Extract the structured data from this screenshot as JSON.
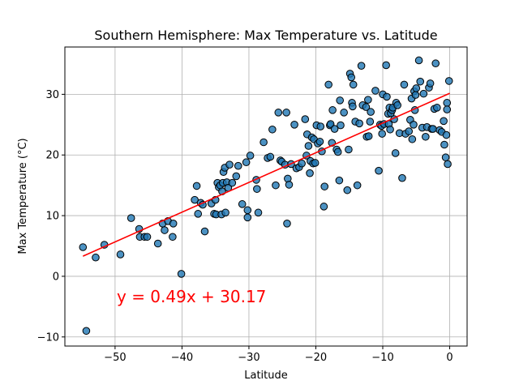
{
  "chart_data": {
    "type": "scatter",
    "title": "Southern Hemisphere: Max Temperature vs. Latitude",
    "xlabel": "Latitude",
    "ylabel": "Max Temperature (°C)",
    "xlim": [
      -57.5,
      2.6
    ],
    "ylim": [
      -11.5,
      37.8
    ],
    "xticks": [
      -50,
      -40,
      -30,
      -20,
      -10,
      0
    ],
    "yticks": [
      -10,
      0,
      10,
      20,
      30
    ],
    "grid": true,
    "marker_color": "#1f77b4",
    "marker_edge_color": "#000000",
    "regression": {
      "slope": 0.49,
      "intercept": 30.17,
      "x_range": [
        -54.8,
        0
      ],
      "color": "#ff0000",
      "equation_label": "y = 0.49x + 30.17"
    },
    "points": [
      [
        -54.8,
        4.8
      ],
      [
        -54.3,
        -9.0
      ],
      [
        -52.9,
        3.1
      ],
      [
        -51.6,
        5.2
      ],
      [
        -49.2,
        3.6
      ],
      [
        -47.6,
        9.6
      ],
      [
        -46.4,
        7.8
      ],
      [
        -46.3,
        6.5
      ],
      [
        -45.6,
        6.5
      ],
      [
        -45.2,
        6.5
      ],
      [
        -43.6,
        5.4
      ],
      [
        -42.9,
        8.7
      ],
      [
        -42.6,
        7.6
      ],
      [
        -42.1,
        9.1
      ],
      [
        -41.4,
        6.5
      ],
      [
        -41.3,
        8.7
      ],
      [
        -40.1,
        0.4
      ],
      [
        -38.1,
        12.6
      ],
      [
        -37.8,
        14.9
      ],
      [
        -37.6,
        10.3
      ],
      [
        -37.2,
        12.1
      ],
      [
        -36.9,
        11.8
      ],
      [
        -36.6,
        7.4
      ],
      [
        -35.6,
        12.0
      ],
      [
        -35.2,
        10.3
      ],
      [
        -35.0,
        12.6
      ],
      [
        -34.9,
        10.2
      ],
      [
        -34.7,
        15.4
      ],
      [
        -34.5,
        14.7
      ],
      [
        -34.3,
        15.0
      ],
      [
        -34.1,
        10.2
      ],
      [
        -34.0,
        14.0
      ],
      [
        -33.9,
        15.4
      ],
      [
        -33.8,
        17.2
      ],
      [
        -33.6,
        17.9
      ],
      [
        -33.5,
        10.5
      ],
      [
        -33.3,
        15.5
      ],
      [
        -33.1,
        14.6
      ],
      [
        -32.9,
        18.4
      ],
      [
        -32.5,
        15.4
      ],
      [
        -31.9,
        16.5
      ],
      [
        -31.6,
        18.2
      ],
      [
        -31.0,
        11.9
      ],
      [
        -30.4,
        18.8
      ],
      [
        -30.2,
        9.7
      ],
      [
        -30.2,
        10.9
      ],
      [
        -29.8,
        19.9
      ],
      [
        -28.9,
        15.9
      ],
      [
        -28.8,
        14.4
      ],
      [
        -28.6,
        10.5
      ],
      [
        -27.8,
        22.1
      ],
      [
        -27.2,
        19.5
      ],
      [
        -26.8,
        19.7
      ],
      [
        -26.5,
        24.2
      ],
      [
        -26.0,
        15.0
      ],
      [
        -25.6,
        27.0
      ],
      [
        -25.3,
        19.1
      ],
      [
        -25.1,
        18.9
      ],
      [
        -24.6,
        18.4
      ],
      [
        -24.4,
        27.0
      ],
      [
        -24.3,
        8.7
      ],
      [
        -24.2,
        16.1
      ],
      [
        -24.0,
        15.1
      ],
      [
        -23.7,
        18.5
      ],
      [
        -23.2,
        25.0
      ],
      [
        -22.9,
        17.8
      ],
      [
        -22.5,
        18.0
      ],
      [
        -22.1,
        18.6
      ],
      [
        -21.6,
        25.9
      ],
      [
        -21.4,
        19.9
      ],
      [
        -21.3,
        23.4
      ],
      [
        -21.1,
        21.5
      ],
      [
        -20.9,
        17.0
      ],
      [
        -20.8,
        19.0
      ],
      [
        -20.6,
        22.9
      ],
      [
        -20.4,
        18.6
      ],
      [
        -20.3,
        22.6
      ],
      [
        -20.1,
        18.7
      ],
      [
        -19.9,
        24.9
      ],
      [
        -19.7,
        21.9
      ],
      [
        -19.4,
        22.2
      ],
      [
        -19.3,
        24.7
      ],
      [
        -19.1,
        20.6
      ],
      [
        -18.8,
        11.5
      ],
      [
        -18.7,
        14.8
      ],
      [
        -18.1,
        31.6
      ],
      [
        -17.9,
        24.9
      ],
      [
        -17.8,
        25.1
      ],
      [
        -17.6,
        22.0
      ],
      [
        -17.5,
        27.4
      ],
      [
        -17.2,
        24.3
      ],
      [
        -16.9,
        20.9
      ],
      [
        -16.7,
        20.5
      ],
      [
        -16.5,
        15.8
      ],
      [
        -16.4,
        29.0
      ],
      [
        -16.3,
        24.9
      ],
      [
        -15.8,
        27.0
      ],
      [
        -15.3,
        14.2
      ],
      [
        -15.1,
        20.9
      ],
      [
        -14.9,
        33.4
      ],
      [
        -14.7,
        32.8
      ],
      [
        -14.6,
        28.6
      ],
      [
        -14.5,
        28.0
      ],
      [
        -14.4,
        31.6
      ],
      [
        -14.1,
        25.5
      ],
      [
        -13.8,
        15.0
      ],
      [
        -13.5,
        25.2
      ],
      [
        -13.2,
        34.7
      ],
      [
        -13.0,
        28.2
      ],
      [
        -12.5,
        27.9
      ],
      [
        -12.4,
        23.0
      ],
      [
        -12.2,
        29.1
      ],
      [
        -12.1,
        23.1
      ],
      [
        -11.9,
        25.5
      ],
      [
        -11.8,
        27.1
      ],
      [
        -11.1,
        30.6
      ],
      [
        -10.6,
        17.4
      ],
      [
        -10.4,
        25.0
      ],
      [
        -10.2,
        24.8
      ],
      [
        -10.1,
        23.5
      ],
      [
        -10.0,
        30.0
      ],
      [
        -9.8,
        25.1
      ],
      [
        -9.5,
        34.8
      ],
      [
        -9.4,
        29.6
      ],
      [
        -9.2,
        26.8
      ],
      [
        -9.1,
        25.1
      ],
      [
        -9.0,
        27.8
      ],
      [
        -8.9,
        24.2
      ],
      [
        -8.8,
        26.9
      ],
      [
        -8.6,
        27.4
      ],
      [
        -8.5,
        27.8
      ],
      [
        -8.3,
        25.9
      ],
      [
        -8.1,
        20.3
      ],
      [
        -8.0,
        28.6
      ],
      [
        -7.8,
        28.2
      ],
      [
        -7.5,
        23.6
      ],
      [
        -7.1,
        16.2
      ],
      [
        -6.8,
        31.6
      ],
      [
        -6.6,
        23.5
      ],
      [
        -6.1,
        23.9
      ],
      [
        -5.9,
        25.8
      ],
      [
        -5.7,
        29.3
      ],
      [
        -5.6,
        22.6
      ],
      [
        -5.4,
        25.0
      ],
      [
        -5.3,
        30.5
      ],
      [
        -5.2,
        27.4
      ],
      [
        -5.1,
        29.9
      ],
      [
        -5.0,
        31.0
      ],
      [
        -4.6,
        35.6
      ],
      [
        -4.4,
        32.1
      ],
      [
        -4.1,
        24.5
      ],
      [
        -3.9,
        30.1
      ],
      [
        -3.6,
        23.0
      ],
      [
        -3.4,
        24.6
      ],
      [
        -3.1,
        31.1
      ],
      [
        -2.9,
        31.8
      ],
      [
        -2.7,
        24.3
      ],
      [
        -2.5,
        24.3
      ],
      [
        -2.3,
        27.6
      ],
      [
        -2.1,
        35.1
      ],
      [
        -1.9,
        27.8
      ],
      [
        -1.5,
        24.1
      ],
      [
        -1.2,
        23.8
      ],
      [
        -0.9,
        25.6
      ],
      [
        -0.8,
        21.7
      ],
      [
        -0.6,
        19.6
      ],
      [
        -0.5,
        23.3
      ],
      [
        -0.4,
        28.6
      ],
      [
        -0.4,
        27.5
      ],
      [
        -0.3,
        18.5
      ],
      [
        -0.1,
        32.2
      ]
    ]
  }
}
